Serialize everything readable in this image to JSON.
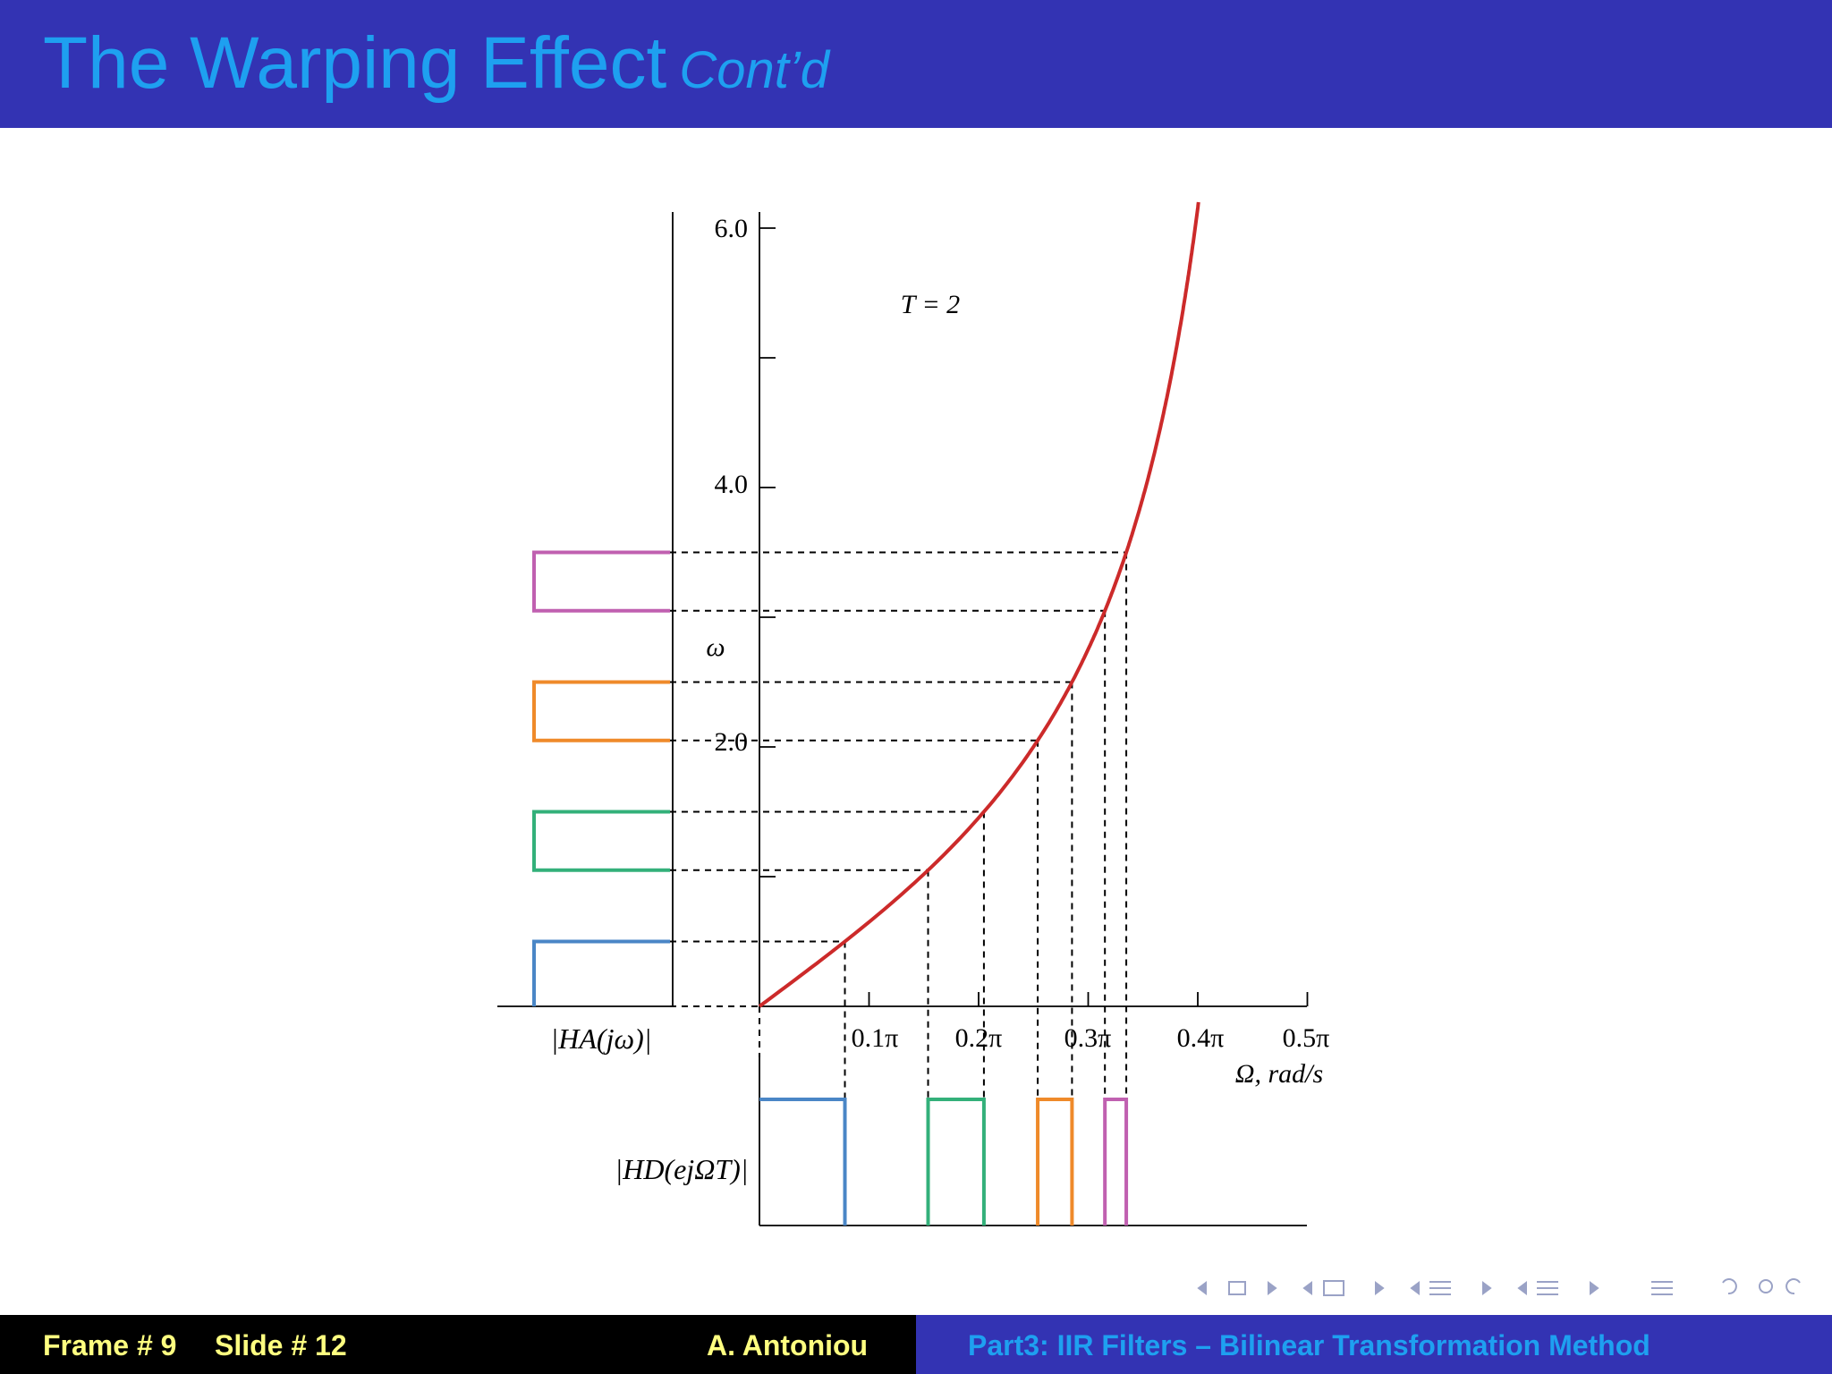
{
  "slide": {
    "title": "The Warping Effect",
    "title_suffix": "Cont’d"
  },
  "chart_data": {
    "type": "line",
    "annotation": "T = 2",
    "y_axis_symbol": "ω",
    "x_axis_label": "Ω, rad/s",
    "analog_response_label": "|HA(jω)|",
    "digital_response_label": "|HD(ejΩT)|",
    "y_ticks": [
      "6.0",
      "4.0",
      "2.0"
    ],
    "x_ticks": [
      "0.1π",
      "0.2π",
      "0.3π",
      "0.4π",
      "0.5π"
    ],
    "ylim": [
      0,
      6.0
    ],
    "xlim": [
      0,
      0.5
    ],
    "x_units": "multiples of π",
    "curve": {
      "name": "ω = 2 tan(ΩT/2)",
      "color": "#cc2a2a"
    },
    "bands": [
      {
        "color": "#4a86c6",
        "omega_low": 0.0,
        "omega_high": 0.5
      },
      {
        "color": "#33b07a",
        "omega_low": 1.05,
        "omega_high": 1.5
      },
      {
        "color": "#ef8a2a",
        "omega_low": 2.05,
        "omega_high": 2.5
      },
      {
        "color": "#c060b0",
        "omega_low": 3.05,
        "omega_high": 3.5
      }
    ]
  },
  "footer": {
    "frame": "Frame # 9",
    "slide_no": "Slide # 12",
    "author": "A. Antoniou",
    "section": "Part3: IIR Filters – Bilinear Transformation Method"
  },
  "nav_icons": [
    "arrow-left-icon",
    "frame-icon",
    "arrow-right-icon",
    "arrow-left-icon",
    "subsection-icon",
    "arrow-right-icon",
    "arrow-left-icon",
    "section-icon",
    "arrow-right-icon",
    "arrow-left-icon",
    "section-icon",
    "arrow-right-icon",
    "align-icon",
    "undo-icon",
    "search-icon",
    "redo-icon"
  ]
}
